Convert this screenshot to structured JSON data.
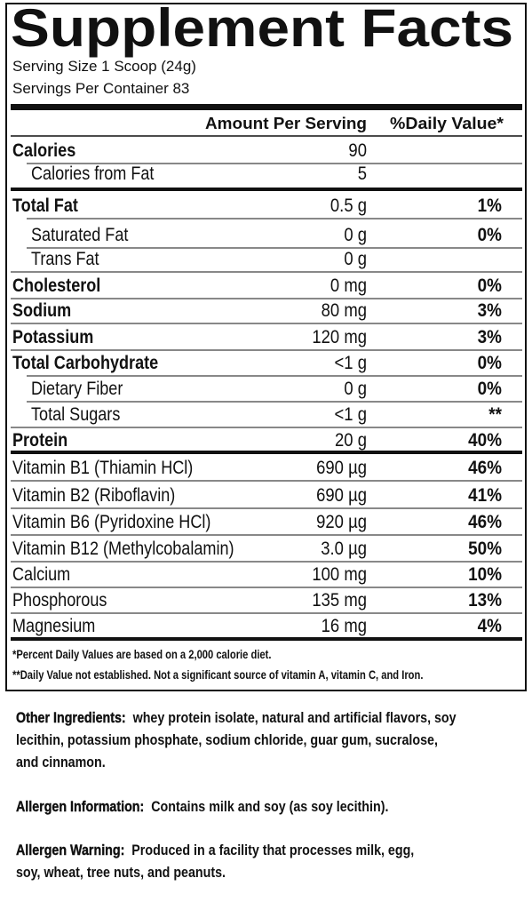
{
  "header": {
    "title": "Supplement Facts",
    "serving_size": "Serving Size 1 Scoop (24g)",
    "servings_per_container": "Servings Per Container 83"
  },
  "table": {
    "columns": [
      "Amount Per Serving",
      "%Daily Value*"
    ],
    "rows": [
      [
        "Calories",
        "90",
        null
      ],
      [
        "Calories from Fat",
        "5",
        null
      ],
      [
        "Total Fat",
        "0.5 g",
        "1%"
      ],
      [
        "Saturated Fat",
        "0 g",
        "0%"
      ],
      [
        "Trans Fat",
        "0 g",
        null
      ],
      [
        "Cholesterol",
        "0 mg",
        "0%"
      ],
      [
        "Sodium",
        "80 mg",
        "3%"
      ],
      [
        "Potassium",
        "120 mg",
        "3%"
      ],
      [
        "Total Carbohydrate",
        "<1 g",
        "0%"
      ],
      [
        "Dietary Fiber",
        "0 g",
        "0%"
      ],
      [
        "Total Sugars",
        "<1 g",
        "**"
      ],
      [
        "Protein",
        "20 g",
        "40%"
      ],
      [
        "Vitamin B1 (Thiamin HCl)",
        "690 µg",
        "46%"
      ],
      [
        "Vitamin B2 (Riboflavin)",
        "690 µg",
        "41%"
      ],
      [
        "Vitamin B6 (Pyridoxine HCl)",
        "920 µg",
        "46%"
      ],
      [
        "Vitamin B12 (Methylcobalamin)",
        "3.0 µg",
        "50%"
      ],
      [
        "Calcium",
        "100 mg",
        "10%"
      ],
      [
        "Phosphorous",
        "135 mg",
        "13%"
      ],
      [
        "Magnesium",
        "16 mg",
        "4%"
      ]
    ]
  },
  "footnotes": [
    "*Percent Daily Values are based on a 2,000 calorie diet.",
    "**Daily Value not established.  Not a significant source of vitamin A, vitamin C, and Iron."
  ],
  "other_ingredients": {
    "label": "Other Ingredients:",
    "lines": [
      "whey protein isolate, natural and artificial flavors, soy",
      "lecithin, potassium phosphate, sodium chloride, guar gum,  sucralose,",
      "and cinnamon."
    ]
  },
  "allergen_information": {
    "label": "Allergen Information:",
    "lines": [
      "Contains milk and soy (as soy lecithin)."
    ]
  },
  "allergen_warning": {
    "label": "Allergen Warning:",
    "lines": [
      "Produced in a facility that processes milk, egg,",
      "soy, wheat, tree nuts, and peanuts."
    ]
  }
}
